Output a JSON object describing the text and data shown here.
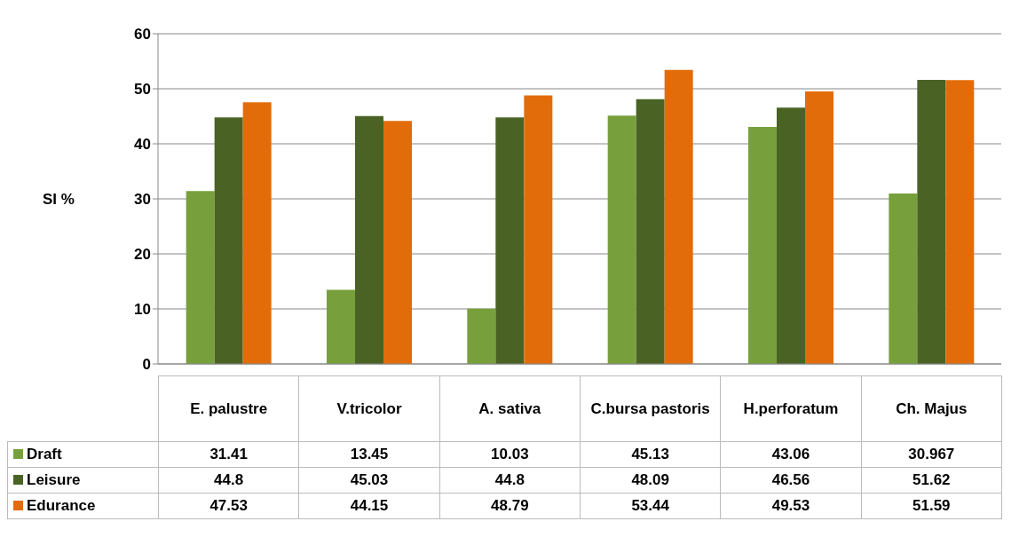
{
  "chart_data": {
    "type": "bar",
    "ylabel": "SI %",
    "categories": [
      "E. palustre",
      "V.tricolor",
      "A. sativa",
      "C.bursa pastoris",
      "H.perforatum",
      "Ch. Majus"
    ],
    "series": [
      {
        "name": "Draft",
        "color": "#77a03c",
        "values": [
          31.41,
          13.45,
          10.03,
          45.13,
          43.06,
          30.967
        ]
      },
      {
        "name": "Leisure",
        "color": "#4a6324",
        "values": [
          44.8,
          45.03,
          44.8,
          48.09,
          46.56,
          51.62
        ]
      },
      {
        "name": "Edurance",
        "color": "#e36c0a",
        "values": [
          47.53,
          44.15,
          48.79,
          53.44,
          49.53,
          51.59
        ]
      }
    ],
    "ylim": [
      0,
      60
    ],
    "yticks": [
      0,
      10,
      20,
      30,
      40,
      50,
      60
    ],
    "grid": "y",
    "legend": "bottom",
    "data_labels": true
  }
}
